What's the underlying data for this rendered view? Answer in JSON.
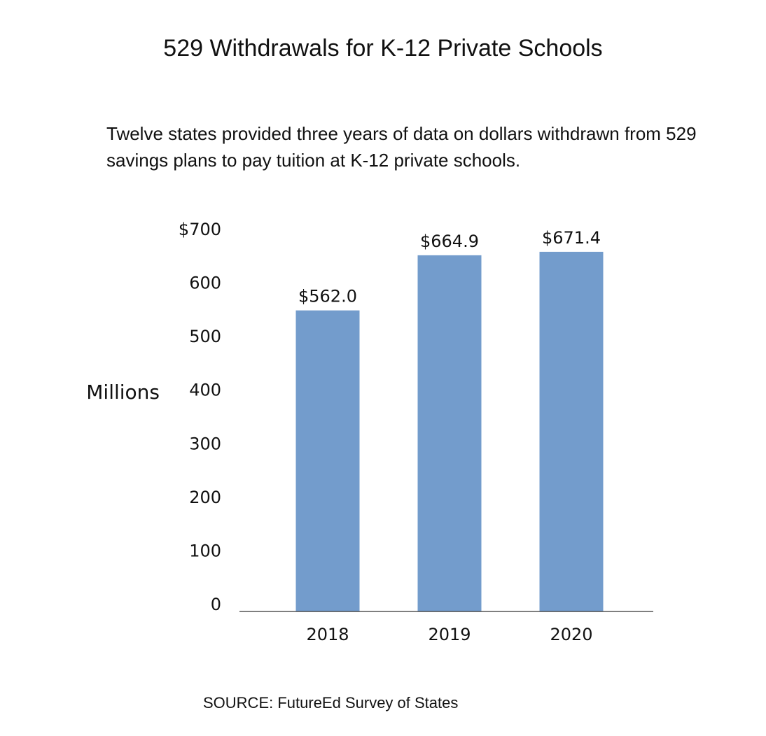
{
  "title": "529 Withdrawals for K-12 Private Schools",
  "subtitle": "Twelve states provided three years of data on dollars withdrawn from 529 savings plans to pay tuition at K-12 private schools.",
  "source": "SOURCE: FutureEd Survey of States",
  "chart_data": {
    "type": "bar",
    "categories": [
      "2018",
      "2019",
      "2020"
    ],
    "values": [
      562.0,
      664.9,
      671.4
    ],
    "data_labels": [
      "$562.0",
      "$664.9",
      "$671.4"
    ],
    "ylabel": "Millions",
    "xlabel": "",
    "ylim": [
      0,
      700
    ],
    "y_ticks": [
      0,
      100,
      200,
      300,
      400,
      500,
      600,
      700
    ],
    "y_tick_labels": [
      "0",
      "100",
      "200",
      "300",
      "400",
      "500",
      "600",
      "$700"
    ],
    "grid": false,
    "bar_color": "#739ccc"
  }
}
